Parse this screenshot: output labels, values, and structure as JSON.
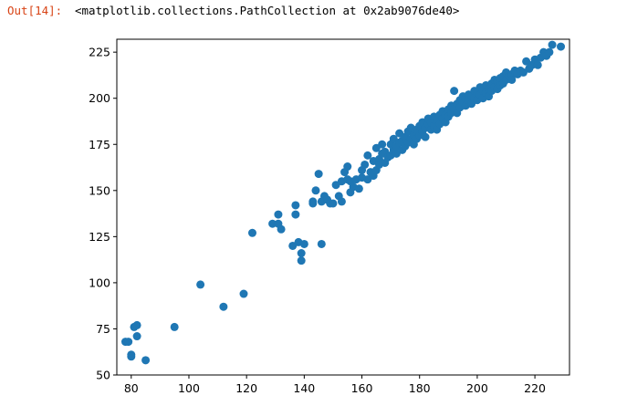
{
  "cell": {
    "prompt": "Out[14]:",
    "repr": "<matplotlib.collections.PathCollection at 0x2ab9076de40>"
  },
  "colors": {
    "marker": "#1f77b4",
    "prompt": "#d84315"
  },
  "chart_data": {
    "type": "scatter",
    "title": "",
    "xlabel": "",
    "ylabel": "",
    "xlim": [
      75,
      232
    ],
    "ylim": [
      50,
      232
    ],
    "xticks": [
      80,
      100,
      120,
      140,
      160,
      180,
      200,
      220
    ],
    "yticks": [
      50,
      75,
      100,
      125,
      150,
      175,
      200,
      225
    ],
    "grid": false,
    "series": [
      {
        "points": [
          [
            78,
            68
          ],
          [
            79,
            68
          ],
          [
            80,
            61
          ],
          [
            80,
            60
          ],
          [
            81,
            76
          ],
          [
            82,
            77
          ],
          [
            82,
            71
          ],
          [
            85,
            58
          ],
          [
            95,
            76
          ],
          [
            104,
            99
          ],
          [
            112,
            87
          ],
          [
            119,
            94
          ],
          [
            122,
            127
          ],
          [
            129,
            132
          ],
          [
            131,
            137
          ],
          [
            131,
            132
          ],
          [
            132,
            129
          ],
          [
            136,
            120
          ],
          [
            137,
            142
          ],
          [
            137,
            137
          ],
          [
            138,
            122
          ],
          [
            139,
            112
          ],
          [
            139,
            116
          ],
          [
            140,
            121
          ],
          [
            143,
            143
          ],
          [
            143,
            144
          ],
          [
            144,
            150
          ],
          [
            145,
            159
          ],
          [
            146,
            121
          ],
          [
            146,
            144
          ],
          [
            147,
            147
          ],
          [
            148,
            145
          ],
          [
            149,
            143
          ],
          [
            150,
            143
          ],
          [
            151,
            153
          ],
          [
            152,
            147
          ],
          [
            153,
            155
          ],
          [
            153,
            144
          ],
          [
            154,
            160
          ],
          [
            155,
            156
          ],
          [
            155,
            163
          ],
          [
            156,
            155
          ],
          [
            156,
            149
          ],
          [
            157,
            152
          ],
          [
            158,
            156
          ],
          [
            159,
            151
          ],
          [
            160,
            157
          ],
          [
            160,
            161
          ],
          [
            161,
            164
          ],
          [
            162,
            156
          ],
          [
            162,
            169
          ],
          [
            163,
            160
          ],
          [
            164,
            166
          ],
          [
            164,
            158
          ],
          [
            165,
            161
          ],
          [
            165,
            173
          ],
          [
            166,
            167
          ],
          [
            166,
            164
          ],
          [
            167,
            170
          ],
          [
            167,
            175
          ],
          [
            168,
            165
          ],
          [
            168,
            171
          ],
          [
            169,
            168
          ],
          [
            170,
            175
          ],
          [
            170,
            169
          ],
          [
            171,
            172
          ],
          [
            171,
            178
          ],
          [
            172,
            170
          ],
          [
            172,
            174
          ],
          [
            173,
            176
          ],
          [
            173,
            181
          ],
          [
            174,
            172
          ],
          [
            174,
            177
          ],
          [
            175,
            179
          ],
          [
            175,
            174
          ],
          [
            176,
            182
          ],
          [
            176,
            176
          ],
          [
            177,
            178
          ],
          [
            177,
            184
          ],
          [
            178,
            180
          ],
          [
            178,
            175
          ],
          [
            179,
            183
          ],
          [
            179,
            178
          ],
          [
            180,
            185
          ],
          [
            180,
            180
          ],
          [
            181,
            182
          ],
          [
            181,
            187
          ],
          [
            182,
            184
          ],
          [
            182,
            179
          ],
          [
            183,
            186
          ],
          [
            183,
            189
          ],
          [
            184,
            183
          ],
          [
            184,
            187
          ],
          [
            185,
            190
          ],
          [
            185,
            185
          ],
          [
            186,
            188
          ],
          [
            186,
            183
          ],
          [
            187,
            191
          ],
          [
            187,
            186
          ],
          [
            188,
            189
          ],
          [
            188,
            193
          ],
          [
            189,
            191
          ],
          [
            189,
            187
          ],
          [
            190,
            194
          ],
          [
            190,
            190
          ],
          [
            191,
            192
          ],
          [
            191,
            196
          ],
          [
            192,
            204
          ],
          [
            192,
            194
          ],
          [
            193,
            197
          ],
          [
            193,
            192
          ],
          [
            194,
            199
          ],
          [
            194,
            195
          ],
          [
            195,
            198
          ],
          [
            195,
            201
          ],
          [
            196,
            200
          ],
          [
            196,
            196
          ],
          [
            197,
            202
          ],
          [
            197,
            199
          ],
          [
            198,
            201
          ],
          [
            198,
            197
          ],
          [
            199,
            204
          ],
          [
            199,
            200
          ],
          [
            200,
            203
          ],
          [
            200,
            199
          ],
          [
            201,
            206
          ],
          [
            201,
            202
          ],
          [
            202,
            204
          ],
          [
            202,
            200
          ],
          [
            203,
            207
          ],
          [
            203,
            203
          ],
          [
            204,
            205
          ],
          [
            204,
            201
          ],
          [
            205,
            208
          ],
          [
            205,
            204
          ],
          [
            206,
            210
          ],
          [
            206,
            206
          ],
          [
            207,
            209
          ],
          [
            207,
            205
          ],
          [
            208,
            211
          ],
          [
            208,
            207
          ],
          [
            209,
            212
          ],
          [
            209,
            208
          ],
          [
            210,
            210
          ],
          [
            210,
            214
          ],
          [
            211,
            212
          ],
          [
            212,
            213
          ],
          [
            212,
            210
          ],
          [
            213,
            215
          ],
          [
            214,
            213
          ],
          [
            215,
            215
          ],
          [
            216,
            214
          ],
          [
            217,
            220
          ],
          [
            218,
            216
          ],
          [
            219,
            218
          ],
          [
            220,
            221
          ],
          [
            221,
            218
          ],
          [
            222,
            222
          ],
          [
            223,
            225
          ],
          [
            224,
            223
          ],
          [
            225,
            225
          ],
          [
            226,
            229
          ],
          [
            229,
            228
          ]
        ]
      }
    ]
  }
}
